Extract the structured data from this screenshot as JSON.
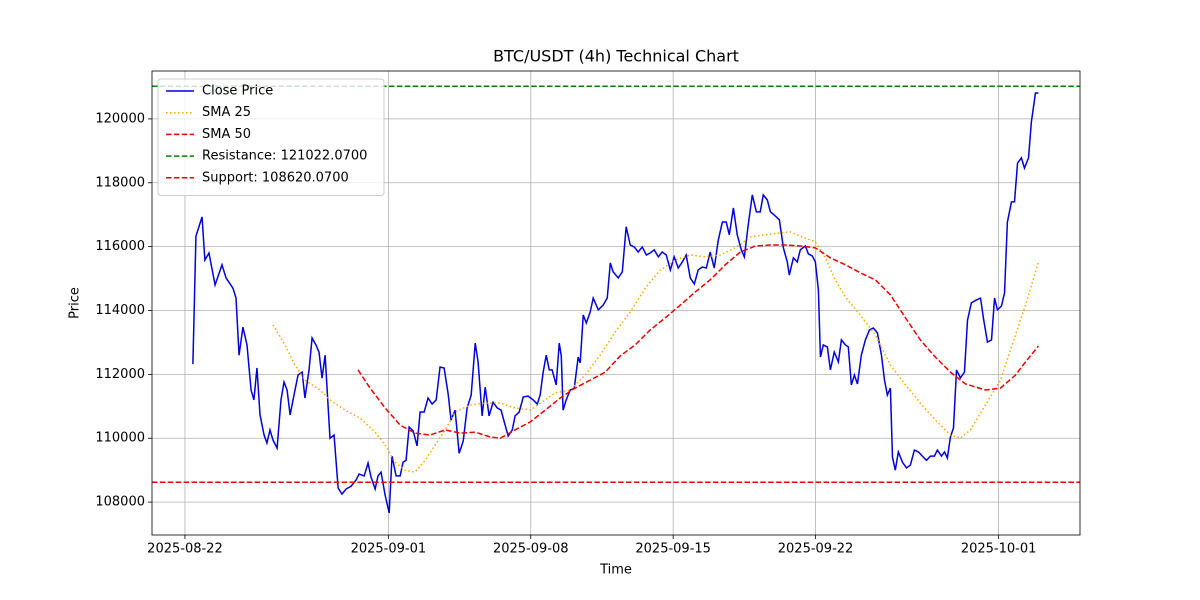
{
  "chart_data": {
    "type": "line",
    "title": "BTC/USDT (4h) Technical Chart",
    "xlabel": "Time",
    "ylabel": "Price",
    "xlim": [
      -1.62,
      44.0
    ],
    "ylim": [
      106970,
      121500
    ],
    "xticks": [
      {
        "value": 0,
        "label": "2025-08-22"
      },
      {
        "value": 10,
        "label": "2025-09-01"
      },
      {
        "value": 17,
        "label": "2025-09-08"
      },
      {
        "value": 24,
        "label": "2025-09-15"
      },
      {
        "value": 31,
        "label": "2025-09-22"
      },
      {
        "value": 40,
        "label": "2025-10-01"
      }
    ],
    "yticks": [
      108000,
      110000,
      112000,
      114000,
      116000,
      118000,
      120000
    ],
    "grid": true,
    "legend": "upper left",
    "series": [
      {
        "name": "Close Price",
        "color": "#0000dd",
        "style": "solid",
        "x": [
          0.39,
          0.54,
          0.84,
          0.98,
          1.18,
          1.48,
          1.82,
          2.02,
          2.36,
          2.51,
          2.66,
          2.85,
          3.05,
          3.25,
          3.39,
          3.54,
          3.69,
          3.89,
          4.03,
          4.18,
          4.33,
          4.53,
          4.72,
          4.87,
          5.02,
          5.17,
          5.36,
          5.56,
          5.76,
          5.9,
          6.1,
          6.25,
          6.44,
          6.59,
          6.74,
          6.89,
          7.13,
          7.33,
          7.53,
          7.72,
          7.92,
          8.17,
          8.41,
          8.56,
          8.81,
          9.0,
          9.15,
          9.35,
          9.49,
          9.64,
          9.84,
          10.04,
          10.18,
          10.38,
          10.58,
          10.72,
          10.87,
          11.02,
          11.22,
          11.41,
          11.56,
          11.76,
          11.95,
          12.15,
          12.35,
          12.54,
          12.74,
          12.94,
          13.08,
          13.28,
          13.48,
          13.68,
          13.87,
          14.07,
          14.27,
          14.41,
          14.61,
          14.76,
          14.95,
          15.15,
          15.35,
          15.54,
          15.74,
          15.89,
          16.09,
          16.23,
          16.43,
          16.63,
          16.87,
          17.12,
          17.32,
          17.46,
          17.61,
          17.76,
          17.91,
          18.05,
          18.25,
          18.4,
          18.5,
          18.59,
          18.74,
          18.94,
          19.14,
          19.33,
          19.43,
          19.58,
          19.73,
          19.92,
          20.07,
          20.32,
          20.56,
          20.76,
          20.91,
          21.05,
          21.3,
          21.5,
          21.69,
          21.89,
          22.09,
          22.28,
          22.48,
          22.68,
          22.87,
          23.07,
          23.27,
          23.46,
          23.66,
          23.86,
          24.05,
          24.25,
          24.45,
          24.64,
          24.84,
          25.04,
          25.23,
          25.43,
          25.63,
          25.82,
          26.02,
          26.22,
          26.42,
          26.61,
          26.76,
          26.96,
          27.15,
          27.35,
          27.5,
          27.69,
          27.89,
          28.09,
          28.28,
          28.43,
          28.63,
          28.78,
          29.02,
          29.22,
          29.42,
          29.61,
          29.71,
          29.91,
          30.1,
          30.25,
          30.5,
          30.65,
          30.84,
          30.99,
          31.14,
          31.24,
          31.38,
          31.58,
          31.73,
          31.92,
          32.12,
          32.27,
          32.47,
          32.61,
          32.76,
          32.91,
          33.06,
          33.25,
          33.45,
          33.65,
          33.84,
          34.04,
          34.24,
          34.39,
          34.53,
          34.68,
          34.78,
          34.92,
          35.07,
          35.27,
          35.47,
          35.66,
          35.86,
          36.06,
          36.25,
          36.45,
          36.65,
          36.84,
          36.99,
          37.19,
          37.34,
          37.48,
          37.63,
          37.78,
          37.93,
          38.12,
          38.32,
          38.47,
          38.66,
          38.91,
          39.11,
          39.25,
          39.45,
          39.65,
          39.8,
          39.94,
          40.14,
          40.29,
          40.43,
          40.63,
          40.78,
          40.93,
          41.12,
          41.27,
          41.47,
          41.61,
          41.81,
          41.96
        ],
        "values": [
          112320,
          116330,
          116930,
          115580,
          115800,
          114800,
          115430,
          115020,
          114700,
          114390,
          112600,
          113480,
          112920,
          111510,
          111200,
          112200,
          110730,
          110100,
          109850,
          110260,
          109940,
          109690,
          111200,
          111760,
          111510,
          110730,
          111350,
          111980,
          112070,
          111260,
          112140,
          113140,
          112920,
          112700,
          111880,
          112600,
          110000,
          110100,
          108440,
          108250,
          108410,
          108500,
          108690,
          108880,
          108820,
          109220,
          108780,
          108410,
          108820,
          108940,
          108220,
          107660,
          109440,
          108820,
          108820,
          109250,
          109310,
          110350,
          110230,
          109760,
          110820,
          110820,
          111260,
          111070,
          111200,
          112230,
          112200,
          111380,
          110570,
          110880,
          109530,
          109910,
          110950,
          111350,
          112980,
          112390,
          110700,
          111600,
          110700,
          111130,
          110950,
          110880,
          110410,
          110070,
          110260,
          110700,
          110820,
          111290,
          111320,
          111200,
          111070,
          111350,
          112070,
          112600,
          112140,
          112140,
          111670,
          112980,
          112580,
          110880,
          111200,
          111510,
          111570,
          112540,
          112360,
          113860,
          113610,
          113950,
          114390,
          114020,
          114170,
          114390,
          115490,
          115210,
          115020,
          115210,
          116620,
          116050,
          115990,
          115830,
          115990,
          115740,
          115800,
          115900,
          115680,
          115830,
          115740,
          115270,
          115680,
          115330,
          115520,
          115740,
          115020,
          114830,
          115270,
          115360,
          115330,
          115830,
          115330,
          116210,
          116770,
          116770,
          116370,
          117210,
          116370,
          115900,
          115680,
          116680,
          117620,
          117090,
          117090,
          117620,
          117460,
          117090,
          116960,
          116840,
          115960,
          115520,
          115110,
          115650,
          115520,
          115900,
          116020,
          115770,
          115710,
          115520,
          114640,
          112540,
          112920,
          112860,
          112140,
          112700,
          112390,
          113080,
          112920,
          112860,
          111670,
          111980,
          111700,
          112600,
          113080,
          113390,
          113450,
          113300,
          112600,
          111820,
          111350,
          111570,
          109410,
          109000,
          109570,
          109250,
          109070,
          109160,
          109630,
          109570,
          109440,
          109310,
          109440,
          109440,
          109630,
          109440,
          109570,
          109380,
          110040,
          110320,
          112140,
          111890,
          112070,
          113700,
          114240,
          114330,
          114390,
          113770,
          113010,
          113080,
          114390,
          114020,
          114140,
          114550,
          116770,
          117400,
          117400,
          118620,
          118780,
          118460,
          118780,
          119910,
          120810,
          120810
        ]
      },
      {
        "name": "SMA 25",
        "color": "#ffa500",
        "style": "dotted",
        "x": [
          4.33,
          4.92,
          5.41,
          5.9,
          6.64,
          7.13,
          7.87,
          8.61,
          9.35,
          9.84,
          10.33,
          10.82,
          11.31,
          11.81,
          12.3,
          12.79,
          13.28,
          14.02,
          14.76,
          15.5,
          16.23,
          16.97,
          17.71,
          18.2,
          18.94,
          19.68,
          20.41,
          21.15,
          21.89,
          22.63,
          23.37,
          24.1,
          24.84,
          25.58,
          26.32,
          27.05,
          27.79,
          28.53,
          29.27,
          29.76,
          30.25,
          30.99,
          31.48,
          31.97,
          32.47,
          33.2,
          33.94,
          34.68,
          35.42,
          36.15,
          36.89,
          37.63,
          38.12,
          38.61,
          39.35,
          40.09,
          40.83,
          41.32,
          41.96
        ],
        "values": [
          113550,
          112920,
          112290,
          111820,
          111510,
          111200,
          110880,
          110630,
          110190,
          109790,
          109250,
          109000,
          108940,
          109310,
          109790,
          110260,
          110820,
          111040,
          111100,
          111100,
          110950,
          110880,
          111200,
          111420,
          111510,
          111980,
          112600,
          113330,
          113950,
          114700,
          115270,
          115580,
          115740,
          115680,
          115740,
          115960,
          116300,
          116370,
          116430,
          116460,
          116330,
          116150,
          115650,
          114960,
          114420,
          113860,
          113230,
          112290,
          111670,
          111100,
          110570,
          110100,
          110000,
          110260,
          111040,
          111820,
          113230,
          114170,
          115520
        ]
      },
      {
        "name": "SMA 50",
        "color": "#ee0000",
        "style": "dashed",
        "x": [
          8.51,
          9.1,
          9.84,
          10.58,
          11.31,
          12.05,
          12.79,
          13.53,
          14.27,
          15.0,
          15.5,
          16.23,
          16.97,
          17.71,
          18.45,
          19.18,
          19.92,
          20.66,
          21.4,
          22.13,
          22.87,
          23.61,
          24.35,
          25.09,
          25.82,
          26.56,
          27.3,
          28.04,
          28.78,
          29.51,
          30.25,
          30.99,
          31.73,
          32.47,
          33.2,
          33.94,
          34.68,
          35.42,
          36.15,
          36.89,
          37.63,
          38.37,
          39.35,
          40.09,
          40.83,
          41.32,
          41.96
        ],
        "values": [
          112140,
          111570,
          110950,
          110410,
          110160,
          110100,
          110260,
          110160,
          110190,
          110040,
          110000,
          110260,
          110510,
          110880,
          111260,
          111570,
          111820,
          112070,
          112580,
          112920,
          113390,
          113770,
          114170,
          114580,
          114960,
          115430,
          115830,
          116020,
          116050,
          116050,
          116020,
          115960,
          115650,
          115430,
          115180,
          114960,
          114490,
          113770,
          113080,
          112540,
          112070,
          111700,
          111510,
          111570,
          111980,
          112390,
          112890
        ]
      }
    ],
    "hlines": [
      {
        "name": "Resistance: 121022.0700",
        "value": 121022.07,
        "color": "#008000",
        "style": "dashed"
      },
      {
        "name": "Support: 108620.0700",
        "value": 108620.07,
        "color": "#ee0000",
        "style": "dashed"
      }
    ]
  }
}
